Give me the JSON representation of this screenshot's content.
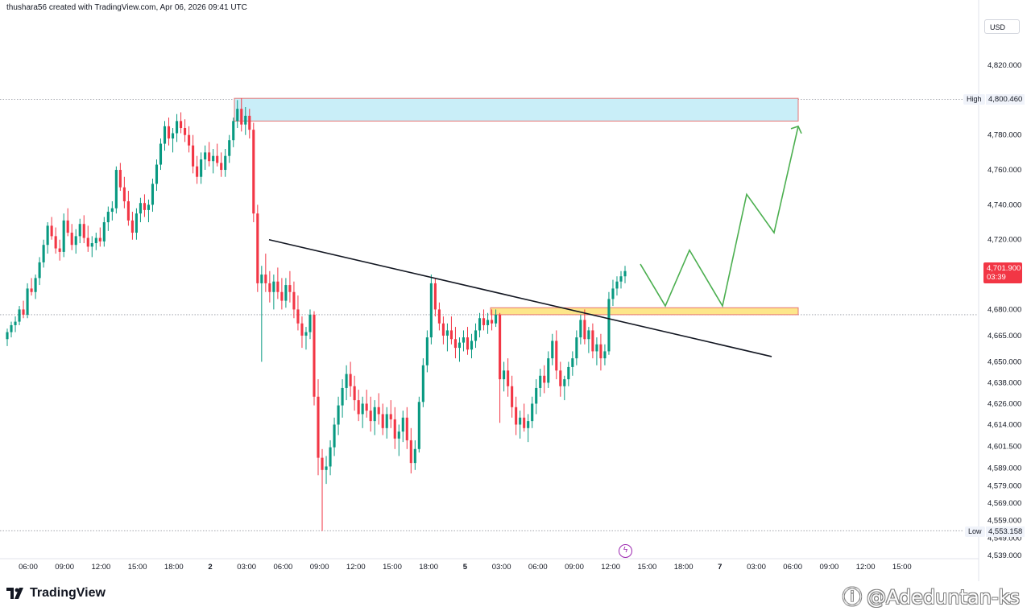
{
  "header": {
    "attribution": "thushara56 created with TradingView.com, Apr 06, 2026 09:41 UTC"
  },
  "price_scale": {
    "currency": "USD",
    "current_price": "4,701.900",
    "countdown": "03:39",
    "high_label": "High",
    "high_value": "4,800.460",
    "low_label": "Low",
    "low_value": "4,553.158"
  },
  "branding": {
    "logo_text": "TradingView",
    "watermark": "@Adeduntan-ks"
  },
  "colors": {
    "up_candle": "#089981",
    "down_candle": "#f23645",
    "price_tag": "#f23645",
    "supply_zone_fill": "#c9eef8",
    "supply_zone_border": "#e57373",
    "demand_zone_fill": "#fde68a",
    "demand_zone_border": "#e57373",
    "trendline": "#131722",
    "projection": "#4caf50"
  },
  "chart_data": {
    "type": "candlestick",
    "symbol_timeframe": "15m",
    "y_tick_labels": [
      "4,820.000",
      "4,780.000",
      "4,760.000",
      "4,740.000",
      "4,720.000",
      "4,680.000",
      "4,665.000",
      "4,650.000",
      "4,638.000",
      "4,626.000",
      "4,614.000",
      "4,601.500",
      "4,589.000",
      "4,579.000",
      "4,569.000",
      "4,559.000",
      "4,549.000",
      "4,539.000"
    ],
    "x_tick_labels": [
      "06:00",
      "09:00",
      "12:00",
      "15:00",
      "18:00",
      "2",
      "03:00",
      "06:00",
      "09:00",
      "12:00",
      "15:00",
      "18:00",
      "5",
      "03:00",
      "06:00",
      "09:00",
      "12:00",
      "15:00",
      "18:00",
      "7",
      "03:00",
      "06:00",
      "09:00",
      "12:00",
      "15:00"
    ],
    "ohlc_bars": [
      [
        4663,
        4669,
        4659,
        4667
      ],
      [
        4667,
        4673,
        4664,
        4671
      ],
      [
        4671,
        4676,
        4667,
        4673
      ],
      [
        4673,
        4682,
        4671,
        4680
      ],
      [
        4680,
        4685,
        4675,
        4677
      ],
      [
        4677,
        4695,
        4675,
        4692
      ],
      [
        4692,
        4698,
        4688,
        4690
      ],
      [
        4690,
        4700,
        4686,
        4698
      ],
      [
        4698,
        4710,
        4694,
        4707
      ],
      [
        4707,
        4720,
        4704,
        4717
      ],
      [
        4717,
        4730,
        4712,
        4728
      ],
      [
        4728,
        4733,
        4720,
        4722
      ],
      [
        4722,
        4727,
        4712,
        4715
      ],
      [
        4715,
        4720,
        4708,
        4713
      ],
      [
        4713,
        4735,
        4710,
        4731
      ],
      [
        4731,
        4738,
        4722,
        4724
      ],
      [
        4724,
        4729,
        4714,
        4717
      ],
      [
        4717,
        4726,
        4712,
        4722
      ],
      [
        4722,
        4732,
        4718,
        4729
      ],
      [
        4729,
        4734,
        4718,
        4721
      ],
      [
        4721,
        4728,
        4713,
        4716
      ],
      [
        4716,
        4722,
        4710,
        4718
      ],
      [
        4718,
        4724,
        4714,
        4721
      ],
      [
        4721,
        4727,
        4716,
        4719
      ],
      [
        4719,
        4733,
        4716,
        4730
      ],
      [
        4730,
        4739,
        4725,
        4736
      ],
      [
        4736,
        4742,
        4731,
        4738
      ],
      [
        4738,
        4762,
        4735,
        4760
      ],
      [
        4760,
        4764,
        4748,
        4750
      ],
      [
        4750,
        4756,
        4738,
        4742
      ],
      [
        4742,
        4748,
        4728,
        4731
      ],
      [
        4731,
        4736,
        4720,
        4724
      ],
      [
        4724,
        4738,
        4720,
        4735
      ],
      [
        4735,
        4744,
        4730,
        4741
      ],
      [
        4741,
        4746,
        4733,
        4737
      ],
      [
        4737,
        4743,
        4730,
        4740
      ],
      [
        4740,
        4755,
        4736,
        4752
      ],
      [
        4752,
        4766,
        4748,
        4763
      ],
      [
        4763,
        4778,
        4760,
        4775
      ],
      [
        4775,
        4788,
        4771,
        4785
      ],
      [
        4785,
        4790,
        4774,
        4778
      ],
      [
        4778,
        4784,
        4770,
        4781
      ],
      [
        4781,
        4792,
        4776,
        4788
      ],
      [
        4788,
        4793,
        4781,
        4784
      ],
      [
        4784,
        4789,
        4776,
        4780
      ],
      [
        4780,
        4785,
        4770,
        4774
      ],
      [
        4774,
        4780,
        4758,
        4762
      ],
      [
        4762,
        4768,
        4752,
        4756
      ],
      [
        4756,
        4770,
        4752,
        4766
      ],
      [
        4766,
        4774,
        4760,
        4770
      ],
      [
        4770,
        4776,
        4762,
        4765
      ],
      [
        4765,
        4772,
        4758,
        4768
      ],
      [
        4768,
        4775,
        4762,
        4764
      ],
      [
        4764,
        4770,
        4756,
        4760
      ],
      [
        4760,
        4772,
        4756,
        4768
      ],
      [
        4768,
        4780,
        4764,
        4777
      ],
      [
        4777,
        4790,
        4773,
        4788
      ],
      [
        4788,
        4800,
        4784,
        4795
      ],
      [
        4795,
        4801,
        4782,
        4786
      ],
      [
        4786,
        4796,
        4780,
        4791
      ],
      [
        4791,
        4795,
        4778,
        4783
      ],
      [
        4783,
        4787,
        4730,
        4735
      ],
      [
        4735,
        4740,
        4690,
        4695
      ],
      [
        4695,
        4705,
        4650,
        4700
      ],
      [
        4700,
        4712,
        4690,
        4695
      ],
      [
        4695,
        4702,
        4684,
        4690
      ],
      [
        4690,
        4700,
        4680,
        4696
      ],
      [
        4696,
        4704,
        4686,
        4690
      ],
      [
        4690,
        4698,
        4680,
        4685
      ],
      [
        4685,
        4698,
        4681,
        4694
      ],
      [
        4694,
        4702,
        4684,
        4690
      ],
      [
        4690,
        4696,
        4675,
        4680
      ],
      [
        4680,
        4688,
        4668,
        4672
      ],
      [
        4672,
        4676,
        4658,
        4665
      ],
      [
        4665,
        4670,
        4657,
        4667
      ],
      [
        4667,
        4680,
        4663,
        4677
      ],
      [
        4677,
        4679,
        4625,
        4630
      ],
      [
        4630,
        4640,
        4585,
        4595
      ],
      [
        4595,
        4600,
        4553,
        4588
      ],
      [
        4588,
        4596,
        4580,
        4590
      ],
      [
        4590,
        4605,
        4585,
        4601
      ],
      [
        4601,
        4618,
        4596,
        4614
      ],
      [
        4614,
        4630,
        4608,
        4625
      ],
      [
        4625,
        4640,
        4618,
        4635
      ],
      [
        4635,
        4648,
        4628,
        4643
      ],
      [
        4643,
        4650,
        4630,
        4636
      ],
      [
        4636,
        4642,
        4622,
        4628
      ],
      [
        4628,
        4634,
        4616,
        4620
      ],
      [
        4620,
        4630,
        4612,
        4626
      ],
      [
        4626,
        4634,
        4618,
        4622
      ],
      [
        4622,
        4630,
        4610,
        4616
      ],
      [
        4616,
        4628,
        4608,
        4624
      ],
      [
        4624,
        4632,
        4614,
        4620
      ],
      [
        4620,
        4626,
        4608,
        4612
      ],
      [
        4612,
        4624,
        4606,
        4620
      ],
      [
        4620,
        4628,
        4612,
        4617
      ],
      [
        4617,
        4624,
        4600,
        4606
      ],
      [
        4606,
        4614,
        4596,
        4610
      ],
      [
        4610,
        4622,
        4604,
        4618
      ],
      [
        4618,
        4624,
        4600,
        4605
      ],
      [
        4605,
        4612,
        4586,
        4592
      ],
      [
        4592,
        4605,
        4588,
        4600
      ],
      [
        4600,
        4630,
        4598,
        4627
      ],
      [
        4627,
        4652,
        4624,
        4648
      ],
      [
        4648,
        4668,
        4644,
        4664
      ],
      [
        4664,
        4700,
        4660,
        4695
      ],
      [
        4695,
        4698,
        4676,
        4680
      ],
      [
        4680,
        4684,
        4668,
        4672
      ],
      [
        4672,
        4676,
        4660,
        4665
      ],
      [
        4665,
        4672,
        4656,
        4668
      ],
      [
        4668,
        4676,
        4660,
        4663
      ],
      [
        4663,
        4670,
        4652,
        4658
      ],
      [
        4658,
        4664,
        4650,
        4661
      ],
      [
        4661,
        4668,
        4656,
        4664
      ],
      [
        4664,
        4670,
        4654,
        4657
      ],
      [
        4657,
        4666,
        4652,
        4662
      ],
      [
        4662,
        4672,
        4658,
        4668
      ],
      [
        4668,
        4678,
        4664,
        4675
      ],
      [
        4675,
        4680,
        4668,
        4671
      ],
      [
        4671,
        4678,
        4666,
        4674
      ],
      [
        4674,
        4680,
        4668,
        4672
      ],
      [
        4672,
        4680,
        4670,
        4677
      ],
      [
        4677,
        4678,
        4615,
        4640
      ],
      [
        4640,
        4650,
        4633,
        4645
      ],
      [
        4645,
        4652,
        4630,
        4636
      ],
      [
        4636,
        4642,
        4618,
        4624
      ],
      [
        4624,
        4630,
        4608,
        4614
      ],
      [
        4614,
        4622,
        4606,
        4618
      ],
      [
        4618,
        4626,
        4610,
        4612
      ],
      [
        4612,
        4620,
        4604,
        4616
      ],
      [
        4616,
        4630,
        4612,
        4626
      ],
      [
        4626,
        4640,
        4620,
        4635
      ],
      [
        4635,
        4646,
        4630,
        4642
      ],
      [
        4642,
        4648,
        4632,
        4638
      ],
      [
        4638,
        4656,
        4635,
        4652
      ],
      [
        4652,
        4666,
        4648,
        4662
      ],
      [
        4662,
        4668,
        4640,
        4645
      ],
      [
        4645,
        4650,
        4630,
        4636
      ],
      [
        4636,
        4642,
        4628,
        4640
      ],
      [
        4640,
        4650,
        4636,
        4647
      ],
      [
        4647,
        4656,
        4642,
        4652
      ],
      [
        4652,
        4668,
        4648,
        4664
      ],
      [
        4664,
        4677,
        4660,
        4674
      ],
      [
        4674,
        4680,
        4660,
        4663
      ],
      [
        4663,
        4670,
        4655,
        4668
      ],
      [
        4668,
        4672,
        4652,
        4656
      ],
      [
        4656,
        4664,
        4648,
        4660
      ],
      [
        4660,
        4666,
        4645,
        4652
      ],
      [
        4652,
        4660,
        4648,
        4656
      ],
      [
        4656,
        4690,
        4654,
        4686
      ],
      [
        4686,
        4697,
        4682,
        4692
      ],
      [
        4692,
        4699,
        4688,
        4696
      ],
      [
        4696,
        4702,
        4692,
        4699
      ],
      [
        4699,
        4705,
        4695,
        4702
      ]
    ],
    "high_line": 4800.46,
    "low_line": 4553.158,
    "current_price": 4701.9,
    "drawings": {
      "supply_zone": {
        "y_top": 4801,
        "y_bottom": 4788
      },
      "demand_zone": {
        "y_top": 4681,
        "y_bottom": 4677
      },
      "trendline": [
        [
          4720,
          "start"
        ],
        [
          4653,
          "end"
        ]
      ],
      "projection_path_prices": [
        4706,
        4682,
        4714,
        4682,
        4746,
        4724,
        4785
      ]
    }
  }
}
